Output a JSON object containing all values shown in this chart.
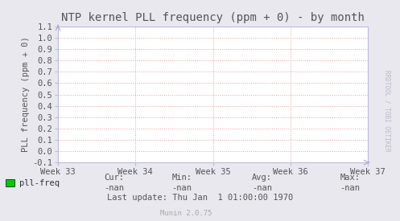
{
  "title": "NTP kernel PLL frequency (ppm + 0) - by month",
  "ylabel": "PLL frequency (ppm + 0)",
  "xlabel_ticks": [
    "Week 33",
    "Week 34",
    "Week 35",
    "Week 36",
    "Week 37"
  ],
  "ylim": [
    -0.1,
    1.1
  ],
  "yticks": [
    -0.1,
    0.0,
    0.1,
    0.2,
    0.3,
    0.4,
    0.5,
    0.6,
    0.7,
    0.8,
    0.9,
    1.0,
    1.1
  ],
  "bg_color": "#e8e8ee",
  "plot_bg_color": "#ffffff",
  "grid_color": "#e8a0a0",
  "spine_color": "#bbbbdd",
  "title_color": "#555555",
  "axis_label_color": "#555555",
  "tick_label_color": "#555555",
  "arrow_color": "#aaaacc",
  "legend_label": "pll-freq",
  "legend_color": "#00cc00",
  "cur_value": "-nan",
  "min_value": "-nan",
  "avg_value": "-nan",
  "max_value": "-nan",
  "last_update": "Last update: Thu Jan  1 01:00:00 1970",
  "watermark": "Munin 2.0.75",
  "rrdtool_label": "RRDTOOL / TOBI OETIKER",
  "font_name": "DejaVu Sans Mono",
  "title_fontsize": 10,
  "axis_label_fontsize": 7.5,
  "tick_fontsize": 7.5,
  "legend_fontsize": 7.5,
  "small_fontsize": 6.5,
  "rrd_fontsize": 5.5
}
